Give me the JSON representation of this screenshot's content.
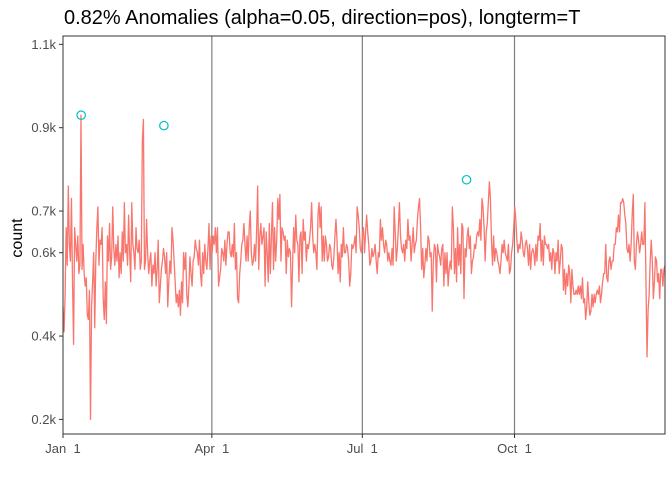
{
  "chart_data": {
    "type": "line",
    "title": "0.82% Anomalies (alpha=0.05, direction=pos), longterm=T",
    "xlabel": "",
    "ylabel": "count",
    "x_start": "2014-01-01",
    "x_end": "2014-12-31",
    "xlim": [
      "2014-01-01",
      "2014-12-31"
    ],
    "ylim": [
      0.165,
      1.12
    ],
    "yticks": [
      0.2,
      0.4,
      0.6,
      0.7,
      0.9,
      1.1
    ],
    "ytick_labels": [
      "0.2k",
      "0.4k",
      "0.6k",
      "0.7k",
      "0.9k",
      "1.1k"
    ],
    "xticks": [
      "2014-01-01",
      "2014-04-01",
      "2014-07-01",
      "2014-10-01"
    ],
    "xtick_labels": [
      "Jan  1",
      "Apr  1",
      "Jul  1",
      "Oct  1"
    ],
    "vlines": [
      "2014-04-01",
      "2014-07-01",
      "2014-10-01"
    ],
    "grid": false,
    "line_color": "#F8766D",
    "anomaly_color": "#00BFC4",
    "series": [
      {
        "values": [
          0.47,
          0.41,
          0.5,
          0.66,
          0.57,
          0.76,
          0.62,
          0.58,
          0.73,
          0.53,
          0.38,
          0.66,
          0.62,
          0.58,
          0.64,
          0.55,
          0.57,
          0.93,
          0.56,
          0.62,
          0.55,
          0.52,
          0.54,
          0.45,
          0.44,
          0.51,
          0.2,
          0.47,
          0.53,
          0.6,
          0.42,
          0.58,
          0.66,
          0.71,
          0.57,
          0.63,
          0.62,
          0.66,
          0.49,
          0.44,
          0.53,
          0.43,
          0.64,
          0.58,
          0.67,
          0.56,
          0.59,
          0.71,
          0.61,
          0.57,
          0.62,
          0.58,
          0.64,
          0.54,
          0.6,
          0.55,
          0.65,
          0.58,
          0.72,
          0.6,
          0.62,
          0.57,
          0.69,
          0.6,
          0.53,
          0.72,
          0.62,
          0.6,
          0.56,
          0.66,
          0.61,
          0.6,
          0.63,
          0.56,
          0.58,
          0.87,
          0.92,
          0.56,
          0.58,
          0.68,
          0.6,
          0.55,
          0.58,
          0.6,
          0.52,
          0.57,
          0.55,
          0.6,
          0.52,
          0.56,
          0.63,
          0.48,
          0.52,
          0.56,
          0.58,
          0.61,
          0.59,
          0.55,
          0.6,
          0.47,
          0.53,
          0.58,
          0.55,
          0.66,
          0.63,
          0.58,
          0.53,
          0.48,
          0.5,
          0.47,
          0.51,
          0.45,
          0.53,
          0.48,
          0.6,
          0.56,
          0.6,
          0.5,
          0.47,
          0.52,
          0.59,
          0.55,
          0.52,
          0.58,
          0.59,
          0.63,
          0.61,
          0.6,
          0.57,
          0.63,
          0.55,
          0.52,
          0.6,
          0.55,
          0.62,
          0.58,
          0.56,
          0.61,
          0.67,
          0.56,
          0.64,
          0.6,
          0.64,
          0.62,
          0.66,
          0.6,
          0.66,
          0.52,
          0.54,
          0.56,
          0.61,
          0.6,
          0.58,
          0.63,
          0.57,
          0.62,
          0.65,
          0.65,
          0.6,
          0.59,
          0.62,
          0.59,
          0.67,
          0.56,
          0.6,
          0.49,
          0.48,
          0.55,
          0.58,
          0.62,
          0.63,
          0.67,
          0.62,
          0.58,
          0.64,
          0.58,
          0.66,
          0.7,
          0.6,
          0.57,
          0.58,
          0.62,
          0.58,
          0.65,
          0.76,
          0.56,
          0.64,
          0.67,
          0.62,
          0.64,
          0.66,
          0.52,
          0.65,
          0.6,
          0.53,
          0.67,
          0.55,
          0.64,
          0.72,
          0.56,
          0.66,
          0.58,
          0.63,
          0.73,
          0.68,
          0.74,
          0.58,
          0.66,
          0.65,
          0.63,
          0.64,
          0.55,
          0.63,
          0.59,
          0.61,
          0.6,
          0.47,
          0.57,
          0.66,
          0.6,
          0.69,
          0.63,
          0.62,
          0.53,
          0.64,
          0.65,
          0.55,
          0.68,
          0.63,
          0.65,
          0.58,
          0.62,
          0.61,
          0.63,
          0.66,
          0.72,
          0.64,
          0.6,
          0.62,
          0.6,
          0.56,
          0.69,
          0.72,
          0.66,
          0.71,
          0.58,
          0.64,
          0.58,
          0.64,
          0.62,
          0.58,
          0.59,
          0.62,
          0.61,
          0.57,
          0.56,
          0.59,
          0.64,
          0.68,
          0.63,
          0.55,
          0.6,
          0.53,
          0.62,
          0.59,
          0.66,
          0.6,
          0.6,
          0.62,
          0.61,
          0.58,
          0.52,
          0.55,
          0.62,
          0.61,
          0.62,
          0.64,
          0.6,
          0.71,
          0.69,
          0.66,
          0.61,
          0.6,
          0.64,
          0.66,
          0.6,
          0.65,
          0.69,
          0.65,
          0.62,
          0.57,
          0.58,
          0.61,
          0.59,
          0.6,
          0.62,
          0.58,
          0.55,
          0.6,
          0.59,
          0.68,
          0.63,
          0.66,
          0.62,
          0.6,
          0.63,
          0.62,
          0.58,
          0.6,
          0.58,
          0.57,
          0.61,
          0.57,
          0.71,
          0.65,
          0.58,
          0.61,
          0.66,
          0.72,
          0.64,
          0.61,
          0.6,
          0.62,
          0.58,
          0.63,
          0.61,
          0.68,
          0.63,
          0.64,
          0.58,
          0.62,
          0.66,
          0.6,
          0.62,
          0.63,
          0.68,
          0.71,
          0.73,
          0.66,
          0.56,
          0.61,
          0.54,
          0.57,
          0.61,
          0.58,
          0.64,
          0.63,
          0.59,
          0.6,
          0.46,
          0.58,
          0.62,
          0.61,
          0.53,
          0.62,
          0.6,
          0.59,
          0.57,
          0.61,
          0.62,
          0.52,
          0.6,
          0.55,
          0.6,
          0.52,
          0.56,
          0.58,
          0.56,
          0.71,
          0.66,
          0.55,
          0.61,
          0.53,
          0.66,
          0.57,
          0.62,
          0.55,
          0.67,
          0.66,
          0.49,
          0.61,
          0.59,
          0.64,
          0.66,
          0.61,
          0.64,
          0.55,
          0.58,
          0.59,
          0.62,
          0.61,
          0.64,
          0.65,
          0.64,
          0.68,
          0.63,
          0.73,
          0.71,
          0.66,
          0.58,
          0.65,
          0.67,
          0.72,
          0.77,
          0.73,
          0.63,
          0.57,
          0.64,
          0.58,
          0.61,
          0.6,
          0.58,
          0.57,
          0.55,
          0.58,
          0.62,
          0.6,
          0.63,
          0.6,
          0.59,
          0.58,
          0.62,
          0.55,
          0.56,
          0.6,
          0.62,
          0.66,
          0.71,
          0.68,
          0.63,
          0.6,
          0.62,
          0.61,
          0.65,
          0.63,
          0.6,
          0.59,
          0.62,
          0.63,
          0.61,
          0.57,
          0.62,
          0.56,
          0.6,
          0.61,
          0.6,
          0.57,
          0.62,
          0.58,
          0.64,
          0.63,
          0.67,
          0.58,
          0.63,
          0.57,
          0.64,
          0.62,
          0.62,
          0.61,
          0.62,
          0.58,
          0.6,
          0.56,
          0.61,
          0.6,
          0.55,
          0.6,
          0.58,
          0.63,
          0.55,
          0.58,
          0.62,
          0.61,
          0.51,
          0.56,
          0.5,
          0.55,
          0.52,
          0.57,
          0.55,
          0.48,
          0.56,
          0.52,
          0.5,
          0.5,
          0.51,
          0.5,
          0.52,
          0.5,
          0.52,
          0.49,
          0.54,
          0.48,
          0.49,
          0.44,
          0.47,
          0.53,
          0.48,
          0.45,
          0.46,
          0.5,
          0.47,
          0.5,
          0.48,
          0.5,
          0.51,
          0.5,
          0.52,
          0.48,
          0.5,
          0.53,
          0.55,
          0.55,
          0.62,
          0.54,
          0.53,
          0.58,
          0.59,
          0.56,
          0.58,
          0.58,
          0.62,
          0.62,
          0.66,
          0.65,
          0.69,
          0.65,
          0.72,
          0.72,
          0.73,
          0.72,
          0.69,
          0.67,
          0.61,
          0.6,
          0.62,
          0.58,
          0.62,
          0.69,
          0.74,
          0.58,
          0.56,
          0.62,
          0.65,
          0.63,
          0.6,
          0.62,
          0.65,
          0.62,
          0.62,
          0.72,
          0.53,
          0.35,
          0.46,
          0.5,
          0.58,
          0.63,
          0.58,
          0.49,
          0.53,
          0.59,
          0.58,
          0.53,
          0.55,
          0.49,
          0.56,
          0.56,
          0.52,
          0.56,
          0.57
        ]
      }
    ],
    "anomalies": [
      {
        "x": "2014-01-12",
        "y": 0.93
      },
      {
        "x": "2014-03-03",
        "y": 0.905
      },
      {
        "x": "2014-09-02",
        "y": 0.775
      }
    ]
  }
}
